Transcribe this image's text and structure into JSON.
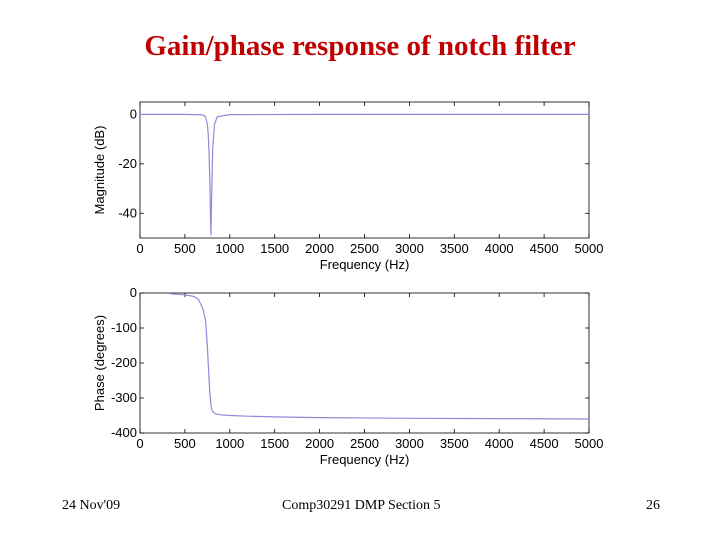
{
  "slide": {
    "title": "Gain/phase response of notch filter",
    "footer_left": "24 Nov'09",
    "footer_center": "Comp30291 DMP Section 5",
    "footer_right": "26"
  },
  "colors": {
    "title": "#c00000",
    "line": "#8c8cd9",
    "axes": "#000000"
  },
  "chart_data": [
    {
      "type": "line",
      "xlabel": "Frequency (Hz)",
      "ylabel": "Magnitude (dB)",
      "xlim": [
        0,
        5000
      ],
      "ylim": [
        -50,
        5
      ],
      "xticks": [
        0,
        500,
        1000,
        1500,
        2000,
        2500,
        3000,
        3500,
        4000,
        4500,
        5000
      ],
      "yticks": [
        0,
        -20,
        -40
      ],
      "grid": false,
      "series": [
        {
          "x": [
            0,
            500,
            700,
            730,
            750,
            760,
            770,
            780,
            790,
            800,
            810,
            830,
            860,
            1000,
            2000,
            3000,
            4000,
            5000
          ],
          "y": [
            0,
            0,
            -0.2,
            -1,
            -4,
            -8,
            -16,
            -30,
            -49,
            -30,
            -14,
            -4,
            -1,
            -0.1,
            0,
            0,
            0,
            0
          ]
        }
      ]
    },
    {
      "type": "line",
      "xlabel": "Frequency (Hz)",
      "ylabel": "Phase (degrees)",
      "xlim": [
        0,
        5000
      ],
      "ylim": [
        -400,
        0
      ],
      "xticks": [
        0,
        500,
        1000,
        1500,
        2000,
        2500,
        3000,
        3500,
        4000,
        4500,
        5000
      ],
      "yticks": [
        0,
        -100,
        -200,
        -300,
        -400
      ],
      "grid": false,
      "series": [
        {
          "x": [
            330,
            500,
            600,
            650,
            700,
            730,
            750,
            760,
            770,
            780,
            790,
            800,
            820,
            850,
            900,
            1000,
            1200,
            1500,
            2000,
            3000,
            4000,
            5000
          ],
          "y": [
            -2,
            -5,
            -10,
            -18,
            -45,
            -80,
            -150,
            -200,
            -250,
            -290,
            -320,
            -334,
            -342,
            -346,
            -348,
            -350,
            -352,
            -354,
            -356,
            -358,
            -359,
            -360
          ]
        }
      ]
    }
  ]
}
